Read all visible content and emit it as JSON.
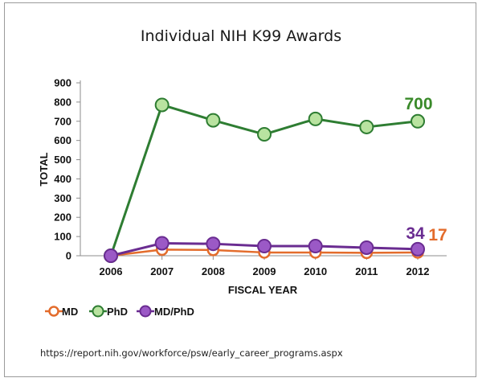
{
  "chart_data": {
    "type": "line",
    "title": "Individual NIH K99 Awards",
    "xlabel": "FISCAL YEAR",
    "ylabel": "TOTAL",
    "categories": [
      "2006",
      "2007",
      "2008",
      "2009",
      "2010",
      "2011",
      "2012"
    ],
    "ylim": [
      0,
      900
    ],
    "yticks": [
      0,
      100,
      200,
      300,
      400,
      500,
      600,
      700,
      800,
      900
    ],
    "grid": false,
    "legend_position": "bottom-left",
    "series": [
      {
        "name": "MD",
        "color": "#e36c2c",
        "values": [
          0,
          32,
          30,
          17,
          17,
          15,
          17
        ]
      },
      {
        "name": "PhD",
        "color": "#2e7d32",
        "fill": "#b9e3a0",
        "values": [
          0,
          785,
          705,
          632,
          712,
          670,
          700
        ]
      },
      {
        "name": "MD/PhD",
        "color": "#6a2c91",
        "fill": "#9b59c6",
        "values": [
          0,
          65,
          62,
          50,
          50,
          42,
          34
        ]
      }
    ],
    "annotations": [
      {
        "text": "700",
        "series": "PhD",
        "color": "#3a8a2a"
      },
      {
        "text": "34",
        "series": "MD/PhD",
        "color": "#6a2c91"
      },
      {
        "text": "17",
        "series": "MD",
        "color": "#e36c2c"
      }
    ]
  },
  "source_text": "https://report.nih.gov/workforce/psw/early_career_programs.aspx"
}
